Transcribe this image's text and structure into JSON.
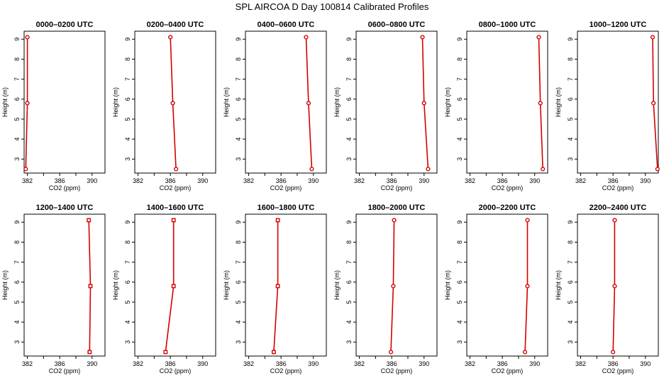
{
  "figure_title": "SPL AIRCOA D  Day 100814  Calibrated Profiles",
  "style": {
    "line_color": "#d40000",
    "marker_color": "#d40000",
    "frame_color": "#000000"
  },
  "chart_data": [
    {
      "type": "line",
      "title": "0000–0200 UTC",
      "xlabel": "CO2 (ppm)",
      "ylabel": "Height (m)",
      "xlim": [
        381.6,
        391.6
      ],
      "ylim": [
        2.3,
        9.4
      ],
      "x_ticks": [
        382,
        386,
        390
      ],
      "y_ticks": [
        3,
        4,
        5,
        6,
        7,
        8,
        9
      ],
      "marker": "circle",
      "points": [
        {
          "x": 381.8,
          "y": 2.5
        },
        {
          "x": 382.0,
          "y": 5.8
        },
        {
          "x": 382.0,
          "y": 9.1
        }
      ]
    },
    {
      "type": "line",
      "title": "0200–0400 UTC",
      "xlabel": "CO2 (ppm)",
      "ylabel": "Height (m)",
      "xlim": [
        381.6,
        391.6
      ],
      "ylim": [
        2.3,
        9.4
      ],
      "x_ticks": [
        382,
        386,
        390
      ],
      "y_ticks": [
        3,
        4,
        5,
        6,
        7,
        8,
        9
      ],
      "marker": "circle",
      "points": [
        {
          "x": 386.7,
          "y": 2.5
        },
        {
          "x": 386.3,
          "y": 5.8
        },
        {
          "x": 386.0,
          "y": 9.1
        }
      ]
    },
    {
      "type": "line",
      "title": "0400–0600 UTC",
      "xlabel": "CO2 (ppm)",
      "ylabel": "Height (m)",
      "xlim": [
        381.6,
        391.6
      ],
      "ylim": [
        2.3,
        9.4
      ],
      "x_ticks": [
        382,
        386,
        390
      ],
      "y_ticks": [
        3,
        4,
        5,
        6,
        7,
        8,
        9
      ],
      "marker": "circle",
      "points": [
        {
          "x": 389.8,
          "y": 2.5
        },
        {
          "x": 389.4,
          "y": 5.8
        },
        {
          "x": 389.1,
          "y": 9.1
        }
      ]
    },
    {
      "type": "line",
      "title": "0600–0800 UTC",
      "xlabel": "CO2 (ppm)",
      "ylabel": "Height (m)",
      "xlim": [
        381.6,
        391.6
      ],
      "ylim": [
        2.3,
        9.4
      ],
      "x_ticks": [
        382,
        386,
        390
      ],
      "y_ticks": [
        3,
        4,
        5,
        6,
        7,
        8,
        9
      ],
      "marker": "circle",
      "points": [
        {
          "x": 390.5,
          "y": 2.5
        },
        {
          "x": 390.0,
          "y": 5.8
        },
        {
          "x": 389.8,
          "y": 9.1
        }
      ]
    },
    {
      "type": "line",
      "title": "0800–1000 UTC",
      "xlabel": "CO2 (ppm)",
      "ylabel": "Height (m)",
      "xlim": [
        381.6,
        391.6
      ],
      "ylim": [
        2.3,
        9.4
      ],
      "x_ticks": [
        382,
        386,
        390
      ],
      "y_ticks": [
        3,
        4,
        5,
        6,
        7,
        8,
        9
      ],
      "marker": "circle",
      "points": [
        {
          "x": 391.0,
          "y": 2.5
        },
        {
          "x": 390.7,
          "y": 5.8
        },
        {
          "x": 390.5,
          "y": 9.1
        }
      ]
    },
    {
      "type": "line",
      "title": "1000–1200 UTC",
      "xlabel": "CO2 (ppm)",
      "ylabel": "Height (m)",
      "xlim": [
        381.6,
        391.6
      ],
      "ylim": [
        2.3,
        9.4
      ],
      "x_ticks": [
        382,
        386,
        390
      ],
      "y_ticks": [
        3,
        4,
        5,
        6,
        7,
        8,
        9
      ],
      "marker": "circle",
      "points": [
        {
          "x": 391.5,
          "y": 2.5
        },
        {
          "x": 391.0,
          "y": 5.8
        },
        {
          "x": 390.9,
          "y": 9.1
        }
      ]
    },
    {
      "type": "line",
      "title": "1200–1400 UTC",
      "xlabel": "CO2 (ppm)",
      "ylabel": "Height (m)",
      "xlim": [
        381.6,
        391.6
      ],
      "ylim": [
        2.3,
        9.4
      ],
      "x_ticks": [
        382,
        386,
        390
      ],
      "y_ticks": [
        3,
        4,
        5,
        6,
        7,
        8,
        9
      ],
      "marker": "square",
      "points": [
        {
          "x": 389.7,
          "y": 2.5
        },
        {
          "x": 389.8,
          "y": 5.8
        },
        {
          "x": 389.6,
          "y": 9.1
        }
      ]
    },
    {
      "type": "line",
      "title": "1400–1600 UTC",
      "xlabel": "CO2 (ppm)",
      "ylabel": "Height (m)",
      "xlim": [
        381.6,
        391.6
      ],
      "ylim": [
        2.3,
        9.4
      ],
      "x_ticks": [
        382,
        386,
        390
      ],
      "y_ticks": [
        3,
        4,
        5,
        6,
        7,
        8,
        9
      ],
      "marker": "square",
      "points": [
        {
          "x": 385.4,
          "y": 2.5
        },
        {
          "x": 386.4,
          "y": 5.8
        },
        {
          "x": 386.4,
          "y": 9.1
        }
      ]
    },
    {
      "type": "line",
      "title": "1600–1800 UTC",
      "xlabel": "CO2 (ppm)",
      "ylabel": "Height (m)",
      "xlim": [
        381.6,
        391.6
      ],
      "ylim": [
        2.3,
        9.4
      ],
      "x_ticks": [
        382,
        386,
        390
      ],
      "y_ticks": [
        3,
        4,
        5,
        6,
        7,
        8,
        9
      ],
      "marker": "square",
      "points": [
        {
          "x": 385.1,
          "y": 2.5
        },
        {
          "x": 385.6,
          "y": 5.8
        },
        {
          "x": 385.6,
          "y": 9.1
        }
      ]
    },
    {
      "type": "line",
      "title": "1800–2000 UTC",
      "xlabel": "CO2 (ppm)",
      "ylabel": "Height (m)",
      "xlim": [
        381.6,
        391.6
      ],
      "ylim": [
        2.3,
        9.4
      ],
      "x_ticks": [
        382,
        386,
        390
      ],
      "y_ticks": [
        3,
        4,
        5,
        6,
        7,
        8,
        9
      ],
      "marker": "circle",
      "points": [
        {
          "x": 385.9,
          "y": 2.5
        },
        {
          "x": 386.2,
          "y": 5.8
        },
        {
          "x": 386.3,
          "y": 9.1
        }
      ]
    },
    {
      "type": "line",
      "title": "2000–2200 UTC",
      "xlabel": "CO2 (ppm)",
      "ylabel": "Height (m)",
      "xlim": [
        381.6,
        391.6
      ],
      "ylim": [
        2.3,
        9.4
      ],
      "x_ticks": [
        382,
        386,
        390
      ],
      "y_ticks": [
        3,
        4,
        5,
        6,
        7,
        8,
        9
      ],
      "marker": "circle",
      "points": [
        {
          "x": 388.8,
          "y": 2.5
        },
        {
          "x": 389.1,
          "y": 5.8
        },
        {
          "x": 389.1,
          "y": 9.1
        }
      ]
    },
    {
      "type": "line",
      "title": "2200–2400 UTC",
      "xlabel": "CO2 (ppm)",
      "ylabel": "Height (m)",
      "xlim": [
        381.6,
        391.6
      ],
      "ylim": [
        2.3,
        9.4
      ],
      "x_ticks": [
        382,
        386,
        390
      ],
      "y_ticks": [
        3,
        4,
        5,
        6,
        7,
        8,
        9
      ],
      "marker": "circle",
      "points": [
        {
          "x": 386.0,
          "y": 2.5
        },
        {
          "x": 386.2,
          "y": 5.8
        },
        {
          "x": 386.2,
          "y": 9.1
        }
      ]
    }
  ]
}
